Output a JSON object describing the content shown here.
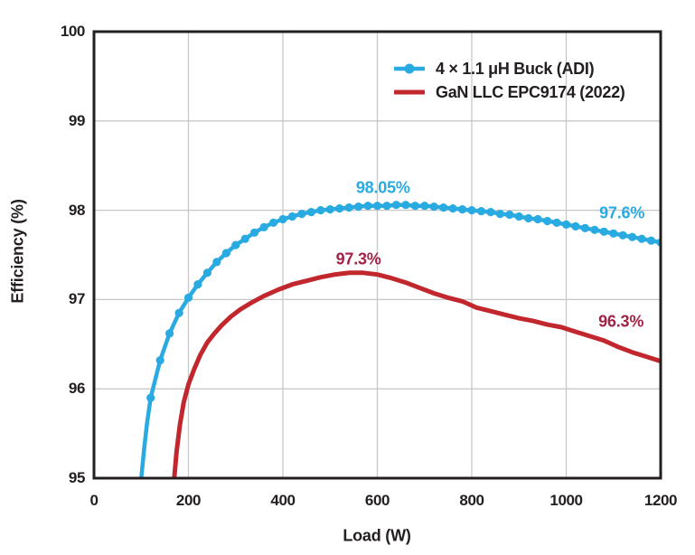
{
  "figure": {
    "background": "#ffffff",
    "text_color": "#231f20"
  },
  "chart_data": {
    "type": "line",
    "title": "",
    "xlabel": "Load (W)",
    "ylabel": "Efficiency (%)",
    "xlim": [
      0,
      1200
    ],
    "ylim": [
      95,
      100
    ],
    "x_ticks": [
      "0",
      "200",
      "400",
      "600",
      "800",
      "1000",
      "1200"
    ],
    "x_tick_values": [
      0,
      200,
      400,
      600,
      800,
      1000,
      1200
    ],
    "y_ticks": [
      "95",
      "96",
      "97",
      "98",
      "99",
      "100"
    ],
    "y_tick_values": [
      95,
      96,
      97,
      98,
      99,
      100
    ],
    "grid": true,
    "grid_color": "#c8c8c8",
    "axis_color": "#231f20",
    "legend_position": "top-right-inside",
    "series": [
      {
        "name": "4 × 1.1 μH Buck (ADI)",
        "color": "#29abe2",
        "marker": "circle",
        "marker_radius": 4.6,
        "line_width": 4.5,
        "marker_from_index": 3,
        "points": [
          [
            100,
            95.0
          ],
          [
            106,
            95.32
          ],
          [
            112,
            95.6
          ],
          [
            120,
            95.9
          ],
          [
            140,
            96.32
          ],
          [
            160,
            96.62
          ],
          [
            180,
            96.85
          ],
          [
            200,
            97.02
          ],
          [
            220,
            97.17
          ],
          [
            240,
            97.3
          ],
          [
            260,
            97.42
          ],
          [
            280,
            97.52
          ],
          [
            300,
            97.61
          ],
          [
            320,
            97.68
          ],
          [
            340,
            97.75
          ],
          [
            360,
            97.81
          ],
          [
            380,
            97.86
          ],
          [
            400,
            97.9
          ],
          [
            420,
            97.93
          ],
          [
            440,
            97.96
          ],
          [
            460,
            97.98
          ],
          [
            480,
            98.0
          ],
          [
            500,
            98.01
          ],
          [
            520,
            98.02
          ],
          [
            540,
            98.03
          ],
          [
            560,
            98.04
          ],
          [
            580,
            98.05
          ],
          [
            600,
            98.05
          ],
          [
            620,
            98.05
          ],
          [
            640,
            98.06
          ],
          [
            660,
            98.06
          ],
          [
            680,
            98.05
          ],
          [
            700,
            98.05
          ],
          [
            720,
            98.04
          ],
          [
            740,
            98.03
          ],
          [
            760,
            98.02
          ],
          [
            780,
            98.01
          ],
          [
            800,
            98.0
          ],
          [
            820,
            97.99
          ],
          [
            840,
            97.98
          ],
          [
            860,
            97.96
          ],
          [
            880,
            97.95
          ],
          [
            900,
            97.93
          ],
          [
            920,
            97.91
          ],
          [
            940,
            97.9
          ],
          [
            960,
            97.88
          ],
          [
            980,
            97.86
          ],
          [
            1000,
            97.84
          ],
          [
            1020,
            97.82
          ],
          [
            1040,
            97.8
          ],
          [
            1060,
            97.78
          ],
          [
            1080,
            97.76
          ],
          [
            1100,
            97.74
          ],
          [
            1120,
            97.72
          ],
          [
            1140,
            97.7
          ],
          [
            1160,
            97.68
          ],
          [
            1180,
            97.66
          ],
          [
            1200,
            97.64
          ]
        ]
      },
      {
        "name": "GaN LLC EPC9174 (2022)",
        "color": "#c1272d",
        "marker": "none",
        "marker_radius": 0,
        "line_width": 5,
        "marker_from_index": 0,
        "points": [
          [
            170,
            95.0
          ],
          [
            175,
            95.3
          ],
          [
            182,
            95.6
          ],
          [
            190,
            95.85
          ],
          [
            200,
            96.05
          ],
          [
            212,
            96.22
          ],
          [
            225,
            96.38
          ],
          [
            240,
            96.52
          ],
          [
            255,
            96.62
          ],
          [
            270,
            96.71
          ],
          [
            290,
            96.81
          ],
          [
            310,
            96.89
          ],
          [
            335,
            96.97
          ],
          [
            360,
            97.04
          ],
          [
            390,
            97.11
          ],
          [
            420,
            97.17
          ],
          [
            450,
            97.21
          ],
          [
            480,
            97.25
          ],
          [
            510,
            97.28
          ],
          [
            540,
            97.3
          ],
          [
            570,
            97.3
          ],
          [
            600,
            97.28
          ],
          [
            630,
            97.24
          ],
          [
            660,
            97.19
          ],
          [
            690,
            97.13
          ],
          [
            720,
            97.07
          ],
          [
            750,
            97.02
          ],
          [
            780,
            96.98
          ],
          [
            810,
            96.91
          ],
          [
            840,
            96.87
          ],
          [
            870,
            96.83
          ],
          [
            900,
            96.79
          ],
          [
            930,
            96.76
          ],
          [
            960,
            96.72
          ],
          [
            990,
            96.69
          ],
          [
            1020,
            96.64
          ],
          [
            1050,
            96.59
          ],
          [
            1080,
            96.54
          ],
          [
            1110,
            96.47
          ],
          [
            1140,
            96.41
          ],
          [
            1170,
            96.36
          ],
          [
            1200,
            96.31
          ]
        ]
      }
    ],
    "annotations": [
      {
        "label": "98.05%",
        "x": 612,
        "y": 98.25,
        "color": "#29abe2"
      },
      {
        "label": "97.6%",
        "x": 1118,
        "y": 97.97,
        "color": "#29abe2"
      },
      {
        "label": "97.3%",
        "x": 560,
        "y": 97.45,
        "color": "#a32347"
      },
      {
        "label": "96.3%",
        "x": 1116,
        "y": 96.75,
        "color": "#a32347"
      }
    ]
  }
}
